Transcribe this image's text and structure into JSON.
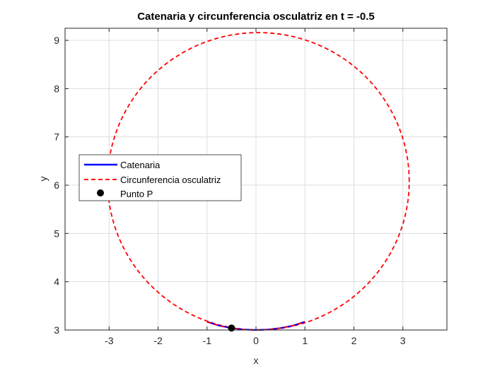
{
  "chart_data": {
    "type": "line",
    "title": "Catenaria y circunferencia osculatriz en t = -0.5",
    "xlabel": "x",
    "ylabel": "y",
    "xlim": [
      -3.9,
      3.9
    ],
    "ylim": [
      3.0,
      9.25
    ],
    "xticks": [
      -3,
      -2,
      -1,
      0,
      1,
      2,
      3
    ],
    "yticks": [
      3,
      4,
      5,
      6,
      7,
      8,
      9
    ],
    "grid": true,
    "legend_position": "left",
    "series": [
      {
        "name": "Catenaria",
        "kind": "curve",
        "color": "#0000ff",
        "style": "solid",
        "x": [
          -1.0,
          -0.75,
          -0.5,
          -0.25,
          0.0,
          0.25,
          0.5,
          0.75,
          1.0
        ],
        "y": [
          3.17,
          3.09,
          3.04,
          3.01,
          3.0,
          3.01,
          3.04,
          3.09,
          3.17
        ]
      },
      {
        "name": "Circunferencia osculatriz",
        "kind": "circle",
        "color": "#ff0000",
        "style": "dashed",
        "center": [
          0.05,
          6.08
        ],
        "radius": 3.08
      },
      {
        "name": "Punto P",
        "kind": "point",
        "color": "#000000",
        "x": [
          -0.5
        ],
        "y": [
          3.04
        ]
      }
    ]
  }
}
